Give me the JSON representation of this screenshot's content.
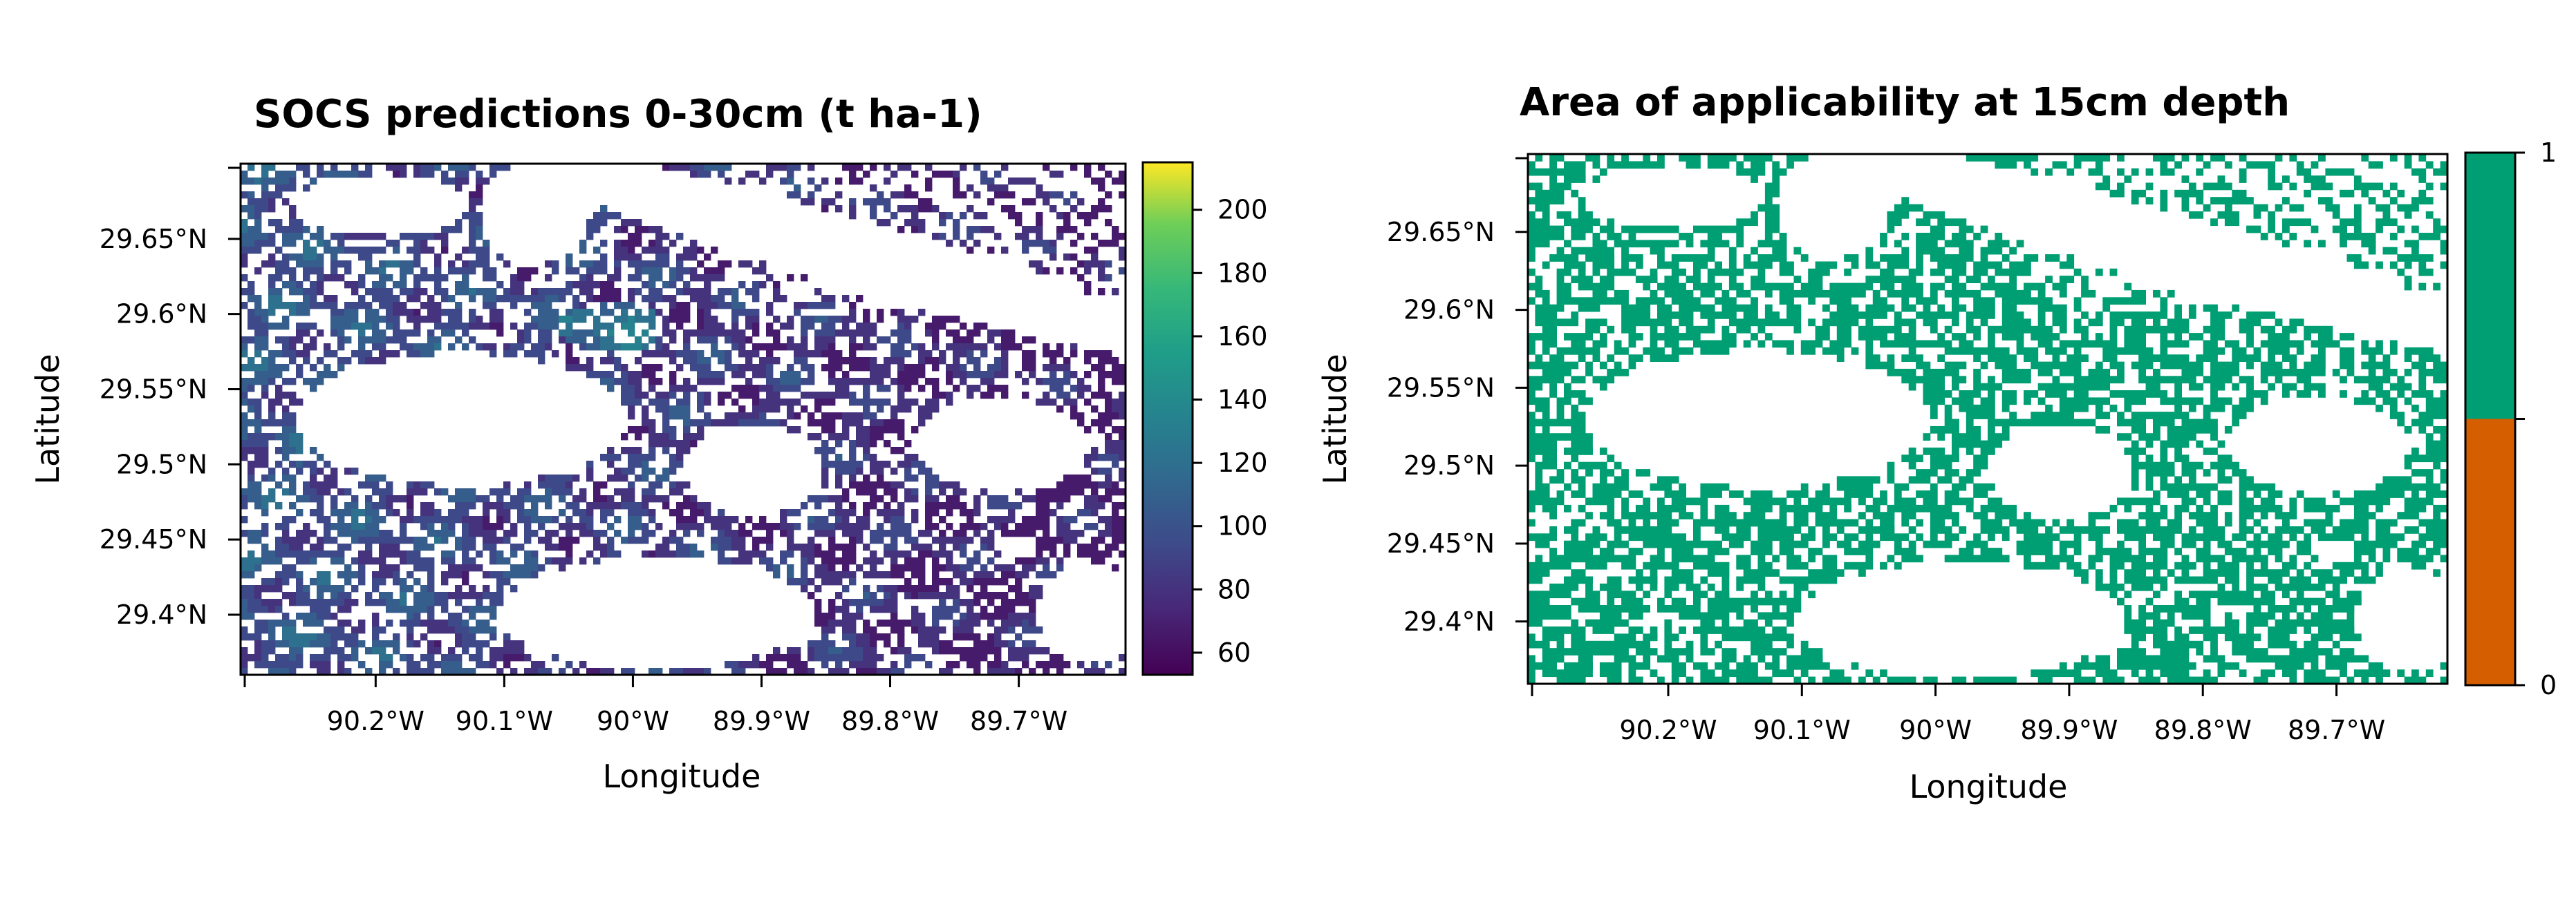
{
  "chart_data": [
    {
      "type": "heatmap",
      "title": "SOCS predictions 0-30cm (t ha-1)",
      "xlabel": "Longitude",
      "ylabel": "Latitude",
      "x_tick_labels": [
        "90.2°W",
        "90.1°W",
        "90°W",
        "89.9°W",
        "89.8°W",
        "89.7°W"
      ],
      "x_ticks": [
        -90.2,
        -90.1,
        -90.0,
        -89.9,
        -89.8,
        -89.7
      ],
      "y_tick_labels": [
        "29.65°N",
        "29.6°N",
        "29.55°N",
        "29.5°N",
        "29.45°N",
        "29.4°N"
      ],
      "y_ticks": [
        29.65,
        29.6,
        29.55,
        29.5,
        29.45,
        29.4
      ],
      "xlim": [
        -90.305,
        -89.617
      ],
      "ylim": [
        29.36,
        29.7
      ],
      "colorbar": {
        "colormap": "viridis",
        "range": [
          53,
          215
        ],
        "tick_labels": [
          "200",
          "180",
          "160",
          "140",
          "120",
          "100",
          "80",
          "60"
        ],
        "ticks": [
          200,
          180,
          160,
          140,
          120,
          100,
          80,
          60
        ]
      },
      "value_summary": {
        "typical_range": [
          60,
          140
        ],
        "west_region_typical": 100,
        "east_region_typical": 70
      },
      "colors": {
        "cell_low": "#440154",
        "cell_mid": "#3b528b",
        "cell_high": "#21918c",
        "cell_top": "#fde725"
      }
    },
    {
      "type": "heatmap",
      "title": "Area of applicability at 15cm depth",
      "xlabel": "Longitude",
      "ylabel": "Latitude",
      "x_tick_labels": [
        "90.2°W",
        "90.1°W",
        "90°W",
        "89.9°W",
        "89.8°W",
        "89.7°W"
      ],
      "x_ticks": [
        -90.2,
        -90.1,
        -90.0,
        -89.9,
        -89.8,
        -89.7
      ],
      "y_tick_labels": [
        "29.65°N",
        "29.6°N",
        "29.55°N",
        "29.5°N",
        "29.45°N",
        "29.4°N"
      ],
      "y_ticks": [
        29.65,
        29.6,
        29.55,
        29.5,
        29.45,
        29.4
      ],
      "xlim": [
        -90.305,
        -89.617
      ],
      "ylim": [
        29.36,
        29.7
      ],
      "colorbar": {
        "type": "discrete",
        "levels": [
          0,
          1
        ],
        "tick_labels": [
          "1",
          "0"
        ],
        "colors": [
          "#009e73",
          "#d55e00"
        ]
      },
      "value_summary": {
        "all_valid_cells": 1
      },
      "colors": {
        "inside": "#009e73",
        "outside": "#d55e00"
      }
    }
  ]
}
